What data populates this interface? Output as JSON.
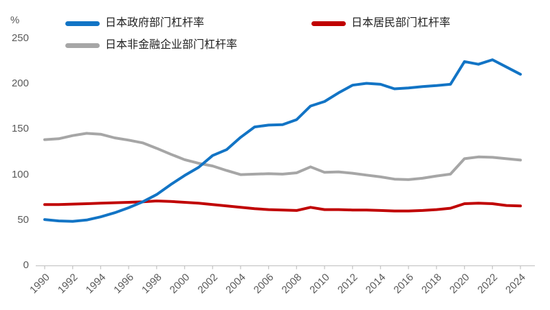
{
  "unit_label": "%",
  "legend": [
    {
      "label": "日本政府部门杠杆率",
      "color": "#1274C5"
    },
    {
      "label": "日本居民部门杠杆率",
      "color": "#C00000"
    },
    {
      "label": "日本非金融企业部门杠杆率",
      "color": "#A6A6A6"
    }
  ],
  "axis_colors": {
    "line": "#C6C6C6",
    "tick_text": "#595959"
  },
  "chart_data": {
    "type": "line",
    "title": "",
    "xlabel": "",
    "ylabel": "%",
    "ylim": [
      0,
      250
    ],
    "yticks": [
      0,
      50,
      100,
      150,
      200,
      250
    ],
    "xtick_step": 2,
    "grid": false,
    "legend_position": "top",
    "x": [
      1990,
      1991,
      1992,
      1993,
      1994,
      1995,
      1996,
      1997,
      1998,
      1999,
      2000,
      2001,
      2002,
      2003,
      2004,
      2005,
      2006,
      2007,
      2008,
      2009,
      2010,
      2011,
      2012,
      2013,
      2014,
      2015,
      2016,
      2017,
      2018,
      2019,
      2020,
      2021,
      2022,
      2023,
      2024
    ],
    "series": [
      {
        "name": "日本政府部门杠杆率",
        "color": "#1274C5",
        "values": [
          50.5,
          49,
          48.5,
          50,
          53.5,
          58,
          63.5,
          70,
          78,
          89,
          99,
          108,
          121,
          127.5,
          141,
          152.5,
          154.5,
          155,
          160.5,
          175.5,
          180.5,
          190,
          198.5,
          200.5,
          199.5,
          194.5,
          195.5,
          197,
          198,
          199.5,
          224.5,
          221.5,
          226.5,
          218.5,
          210.5
        ]
      },
      {
        "name": "日本居民部门杠杆率",
        "color": "#C00000",
        "values": [
          67,
          67,
          67.5,
          68,
          68.5,
          69,
          69.5,
          70,
          71,
          70.5,
          69.5,
          68.5,
          67,
          65.5,
          64,
          62.5,
          61.5,
          61,
          60.5,
          64,
          61.5,
          61.5,
          61,
          61,
          60.5,
          60,
          60,
          60.5,
          61.5,
          63,
          68,
          68.5,
          68,
          66,
          65.5
        ]
      },
      {
        "name": "日本非金融企业部门杠杆率",
        "color": "#A6A6A6",
        "values": [
          138.5,
          139.5,
          143,
          145.5,
          144.5,
          140.5,
          138,
          135,
          129,
          122.5,
          116.5,
          112.5,
          109.5,
          104.5,
          100,
          100.5,
          101,
          100.5,
          102,
          108.5,
          102.5,
          103,
          101.5,
          99.5,
          97.5,
          95,
          94.5,
          96,
          98.5,
          100.5,
          117.5,
          119.5,
          119,
          117.5,
          116
        ]
      }
    ]
  }
}
